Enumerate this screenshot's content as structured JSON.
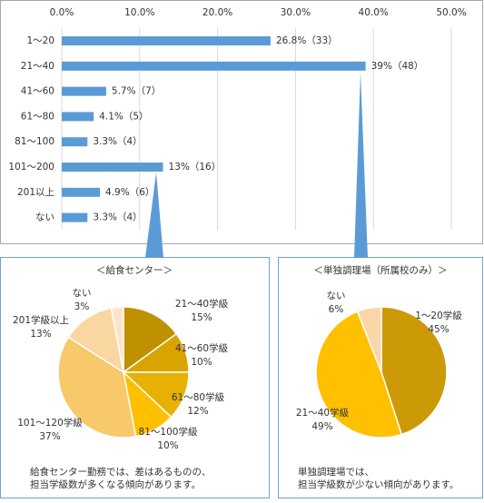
{
  "chart_data": [
    {
      "type": "hbar",
      "categories": [
        "1～20",
        "21～40",
        "41～60",
        "61～80",
        "81～100",
        "101～200",
        "201以上",
        "ない"
      ],
      "values": [
        26.8,
        39,
        5.7,
        4.1,
        3.3,
        13,
        4.9,
        3.3
      ],
      "value_labels": [
        "26.8%（33）",
        "39%（48）",
        "5.7%（7）",
        "4.1%（5）",
        "3.3%（4）",
        "13%（16）",
        "4.9%（6）",
        "3.3%（4）"
      ],
      "color": "#5b9bd5",
      "xlim": [
        0,
        50
      ],
      "xticks": [
        {
          "value": 0,
          "label": "0.0%"
        },
        {
          "value": 10,
          "label": "10.0%"
        },
        {
          "value": 20,
          "label": "20.0%"
        },
        {
          "value": 30,
          "label": "30.0%"
        },
        {
          "value": 40,
          "label": "40.0%"
        },
        {
          "value": 50,
          "label": "50.0%"
        }
      ],
      "grid": true
    },
    {
      "type": "pie",
      "title": "＜給食センター＞",
      "categories": [
        "21～40学級",
        "41～60学級",
        "61～80学級",
        "81～100学級",
        "101～120学級",
        "201学級以上",
        "ない"
      ],
      "values": [
        15,
        10,
        12,
        10,
        37,
        13,
        3
      ],
      "value_labels": [
        "15%",
        "10%",
        "12%",
        "10%",
        "37%",
        "13%",
        "3%"
      ],
      "colors": [
        "#bf9000",
        "#d9a300",
        "#e8b000",
        "#ffc000",
        "#f7c96a",
        "#fad7a0",
        "#fde4c8"
      ],
      "annotations": [
        "給食センター勤務では、差はあるものの、",
        "担当学級数が多くなる傾向があります。"
      ]
    },
    {
      "type": "pie",
      "title": "＜単独調理場（所属校のみ）＞",
      "categories": [
        "1～20学級",
        "21～40学級",
        "ない"
      ],
      "values": [
        45,
        49,
        6
      ],
      "value_labels": [
        "45%",
        "49%",
        "6%"
      ],
      "colors": [
        "#cc9a06",
        "#ffc000",
        "#fcd5a8"
      ],
      "annotations": [
        "単独調理場では、",
        "担当学級数が少ない傾向があります。"
      ]
    }
  ]
}
